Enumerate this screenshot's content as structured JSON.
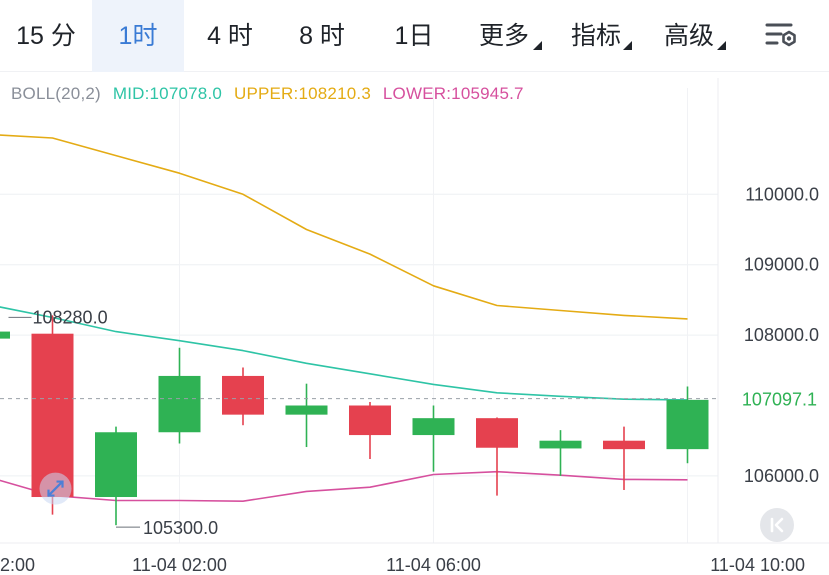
{
  "toolbar": {
    "tabs": [
      {
        "label": "15 分",
        "active": false,
        "dropdown": false
      },
      {
        "label": "1时",
        "active": true,
        "dropdown": false
      },
      {
        "label": "4 时",
        "active": false,
        "dropdown": false
      },
      {
        "label": "8 时",
        "active": false,
        "dropdown": false
      },
      {
        "label": "1日",
        "active": false,
        "dropdown": false
      },
      {
        "label": "更多",
        "active": false,
        "dropdown": true
      },
      {
        "label": "指标",
        "active": false,
        "dropdown": true
      },
      {
        "label": "高级",
        "active": false,
        "dropdown": true
      }
    ],
    "settings_icon": "chart-settings-icon"
  },
  "indicator": {
    "name": "BOLL(20,2)",
    "mid": "MID:107078.0",
    "upper": "UPPER:108210.3",
    "lower": "LOWER:105945.7"
  },
  "colors": {
    "up": "#2fb254",
    "down": "#e5414f",
    "mid": "#2ec4a6",
    "upper": "#e4ab14",
    "lower": "#d6509e",
    "active_tab": "#3a7bd5"
  },
  "chart_data": {
    "type": "candlestick",
    "y_axis_labels": [
      "110000.0",
      "109000.0",
      "108000.0",
      "106000.0"
    ],
    "y_axis_ticks": [
      110000,
      109000,
      108000,
      106000
    ],
    "x_axis_labels": [
      "2:00",
      "11-04 02:00",
      "11-04 06:00",
      "11-04 10:00"
    ],
    "x_axis_label_slots": [
      0,
      3,
      7,
      11
    ],
    "ylim": [
      105000,
      111200
    ],
    "current_price": "107097.1",
    "current_value": 107097.1,
    "max_annotation": {
      "label": "108280.0",
      "value": 108280.0,
      "slot": 1
    },
    "min_annotation": {
      "label": "105300.0",
      "value": 105300.0,
      "slot": 2
    },
    "candles": [
      {
        "open": 107950,
        "close": 108050,
        "high": 108200,
        "low": 107800
      },
      {
        "open": 108020,
        "close": 105700,
        "high": 108280,
        "low": 105450
      },
      {
        "open": 105700,
        "close": 106620,
        "high": 106700,
        "low": 105300
      },
      {
        "open": 106620,
        "close": 107420,
        "high": 107820,
        "low": 106460
      },
      {
        "open": 107420,
        "close": 106870,
        "high": 107540,
        "low": 106720
      },
      {
        "open": 106870,
        "close": 107000,
        "high": 107310,
        "low": 106410
      },
      {
        "open": 107000,
        "close": 106580,
        "high": 107050,
        "low": 106240
      },
      {
        "open": 106580,
        "close": 106820,
        "high": 107000,
        "low": 106060
      },
      {
        "open": 106820,
        "close": 106400,
        "high": 106830,
        "low": 105720
      },
      {
        "open": 106390,
        "close": 106500,
        "high": 106650,
        "low": 106000
      },
      {
        "open": 106500,
        "close": 106380,
        "high": 106700,
        "low": 105800
      },
      {
        "open": 106380,
        "close": 107080,
        "high": 107270,
        "low": 106180
      }
    ],
    "series": [
      {
        "name": "UPPER",
        "color": "#e4ab14",
        "values": [
          110850,
          110800,
          110550,
          110300,
          110000,
          109500,
          109150,
          108700,
          108420,
          108350,
          108280,
          108230
        ]
      },
      {
        "name": "MID",
        "color": "#2ec4a6",
        "values": [
          108430,
          108250,
          108050,
          107920,
          107780,
          107600,
          107450,
          107300,
          107180,
          107130,
          107090,
          107080
        ]
      },
      {
        "name": "LOWER",
        "color": "#d6509e",
        "values": [
          105980,
          105720,
          105650,
          105650,
          105640,
          105780,
          105840,
          106020,
          106060,
          106010,
          105950,
          105945
        ]
      }
    ]
  },
  "controls": {
    "collapse_icon": "collapse-left-icon"
  }
}
